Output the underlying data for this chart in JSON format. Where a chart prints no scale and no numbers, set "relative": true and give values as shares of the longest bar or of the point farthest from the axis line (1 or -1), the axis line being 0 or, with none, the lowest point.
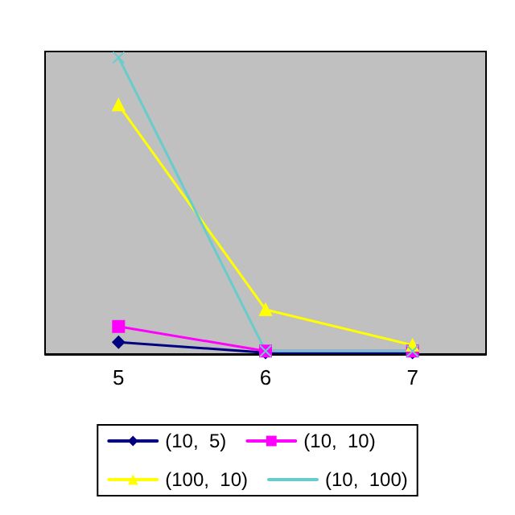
{
  "chart_data": {
    "type": "line",
    "relative": true,
    "categories": [
      "5",
      "6",
      "7"
    ],
    "legend": "bottom",
    "series": [
      {
        "name": "(10,  5)",
        "color": "#000080",
        "marker": "diamond",
        "values": [
          0.04,
          0.005,
          0.005
        ]
      },
      {
        "name": "(10,  10)",
        "color": "#ff00ff",
        "marker": "square",
        "values": [
          0.093,
          0.01,
          0.01
        ]
      },
      {
        "name": "(100,  10)",
        "color": "#ffff00",
        "marker": "triangle",
        "values": [
          0.84,
          0.15,
          0.03
        ]
      },
      {
        "name": "(10,  100)",
        "color": "#66cccc",
        "marker": "cross",
        "values": [
          1,
          0.01,
          0.01
        ]
      }
    ]
  }
}
